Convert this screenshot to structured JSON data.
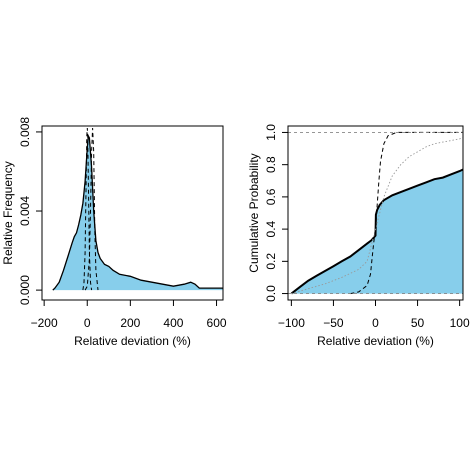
{
  "chart_data": [
    {
      "type": "area",
      "xlabel": "Relative deviation (%)",
      "ylabel": "Relative Frequency",
      "xlim": [
        -210,
        630
      ],
      "ylim": [
        -0.0005,
        0.0083
      ],
      "xticks": [
        -200,
        0,
        200,
        400,
        600
      ],
      "xtick_labels": [
        "−200",
        "0",
        "200",
        "400",
        "600"
      ],
      "yticks": [
        0.0,
        0.004,
        0.008
      ],
      "ytick_labels": [
        "0.000",
        "0.004",
        "0.008"
      ],
      "grid": false,
      "fill_color": "#87CEEB",
      "series": [
        {
          "style": "solid-filled",
          "x": [
            -160,
            -150,
            -130,
            -110,
            -90,
            -70,
            -60,
            -50,
            -40,
            -30,
            -20,
            -10,
            0,
            5,
            10,
            20,
            30,
            40,
            50,
            60,
            80,
            100,
            120,
            150,
            200,
            250,
            300,
            350,
            400,
            450,
            480,
            500,
            520,
            550,
            600,
            630
          ],
          "y": [
            0.0,
            0.0001,
            0.0004,
            0.001,
            0.0017,
            0.0024,
            0.0027,
            0.0029,
            0.0033,
            0.0038,
            0.0044,
            0.0055,
            0.0072,
            0.0078,
            0.0077,
            0.0062,
            0.004,
            0.0025,
            0.0019,
            0.0016,
            0.0013,
            0.0012,
            0.001,
            0.0008,
            0.0007,
            0.0005,
            0.0004,
            0.0003,
            0.0002,
            0.0003,
            0.0004,
            0.0003,
            0.0001,
            0.0001,
            0.0001,
            0.0001
          ]
        },
        {
          "style": "dashed",
          "x": [
            -20,
            -15,
            -10,
            -7,
            -4,
            -2,
            0,
            2,
            4,
            7,
            10,
            15,
            20
          ],
          "y": [
            0.0,
            0.0004,
            0.0019,
            0.004,
            0.0064,
            0.0078,
            0.0082,
            0.0078,
            0.0064,
            0.004,
            0.0019,
            0.0004,
            0.0
          ]
        },
        {
          "style": "dashed",
          "x": [
            -10,
            0,
            10,
            15,
            20,
            25,
            30,
            35,
            40,
            50
          ],
          "y": [
            0.0,
            0.0002,
            0.0016,
            0.004,
            0.007,
            0.0082,
            0.007,
            0.003,
            0.001,
            0.0
          ]
        }
      ]
    },
    {
      "type": "line",
      "xlabel": "Relative deviation (%)",
      "ylabel": "Cumulative Probability",
      "xlim": [
        -104,
        104
      ],
      "ylim": [
        -0.04,
        1.04
      ],
      "xticks": [
        -100,
        -50,
        0,
        50,
        100
      ],
      "xtick_labels": [
        "−100",
        "−50",
        "0",
        "50",
        "100"
      ],
      "yticks": [
        0.0,
        0.2,
        0.4,
        0.6,
        0.8,
        1.0
      ],
      "ytick_labels": [
        "0.0",
        "0.2",
        "0.4",
        "0.6",
        "0.8",
        "1.0"
      ],
      "grid": false,
      "fill_color": "#87CEEB",
      "series": [
        {
          "style": "solid-thick-filled",
          "x": [
            -100,
            -90,
            -80,
            -70,
            -60,
            -50,
            -40,
            -30,
            -20,
            -10,
            -5,
            0,
            0.5,
            2,
            5,
            10,
            20,
            30,
            40,
            50,
            60,
            70,
            80,
            90,
            100,
            104
          ],
          "y": [
            0.0,
            0.04,
            0.08,
            0.11,
            0.14,
            0.17,
            0.2,
            0.23,
            0.27,
            0.31,
            0.33,
            0.36,
            0.49,
            0.52,
            0.55,
            0.58,
            0.61,
            0.63,
            0.65,
            0.67,
            0.69,
            0.71,
            0.72,
            0.74,
            0.76,
            0.77
          ]
        },
        {
          "style": "dotted",
          "x": [
            -100,
            -80,
            -60,
            -40,
            -20,
            -10,
            0,
            10,
            20,
            30,
            40,
            50,
            60,
            70,
            80,
            90,
            100,
            104
          ],
          "y": [
            0.0,
            0.03,
            0.06,
            0.1,
            0.15,
            0.2,
            0.4,
            0.6,
            0.73,
            0.8,
            0.85,
            0.88,
            0.91,
            0.93,
            0.94,
            0.95,
            0.96,
            0.97
          ]
        },
        {
          "style": "dashed",
          "x": [
            -30,
            -20,
            -10,
            -6,
            -4,
            -2,
            0,
            2,
            4,
            6,
            10,
            15,
            20,
            25,
            30,
            104
          ],
          "y": [
            0.0,
            0.01,
            0.05,
            0.12,
            0.22,
            0.32,
            0.4,
            0.55,
            0.7,
            0.82,
            0.93,
            0.98,
            0.99,
            1.0,
            1.0,
            1.0
          ]
        },
        {
          "style": "dashed-gray-reference",
          "x": [
            -104,
            104
          ],
          "y": [
            0.0,
            0.0
          ]
        },
        {
          "style": "dashed-gray-reference",
          "x": [
            -104,
            104
          ],
          "y": [
            1.0,
            1.0
          ]
        }
      ]
    }
  ]
}
